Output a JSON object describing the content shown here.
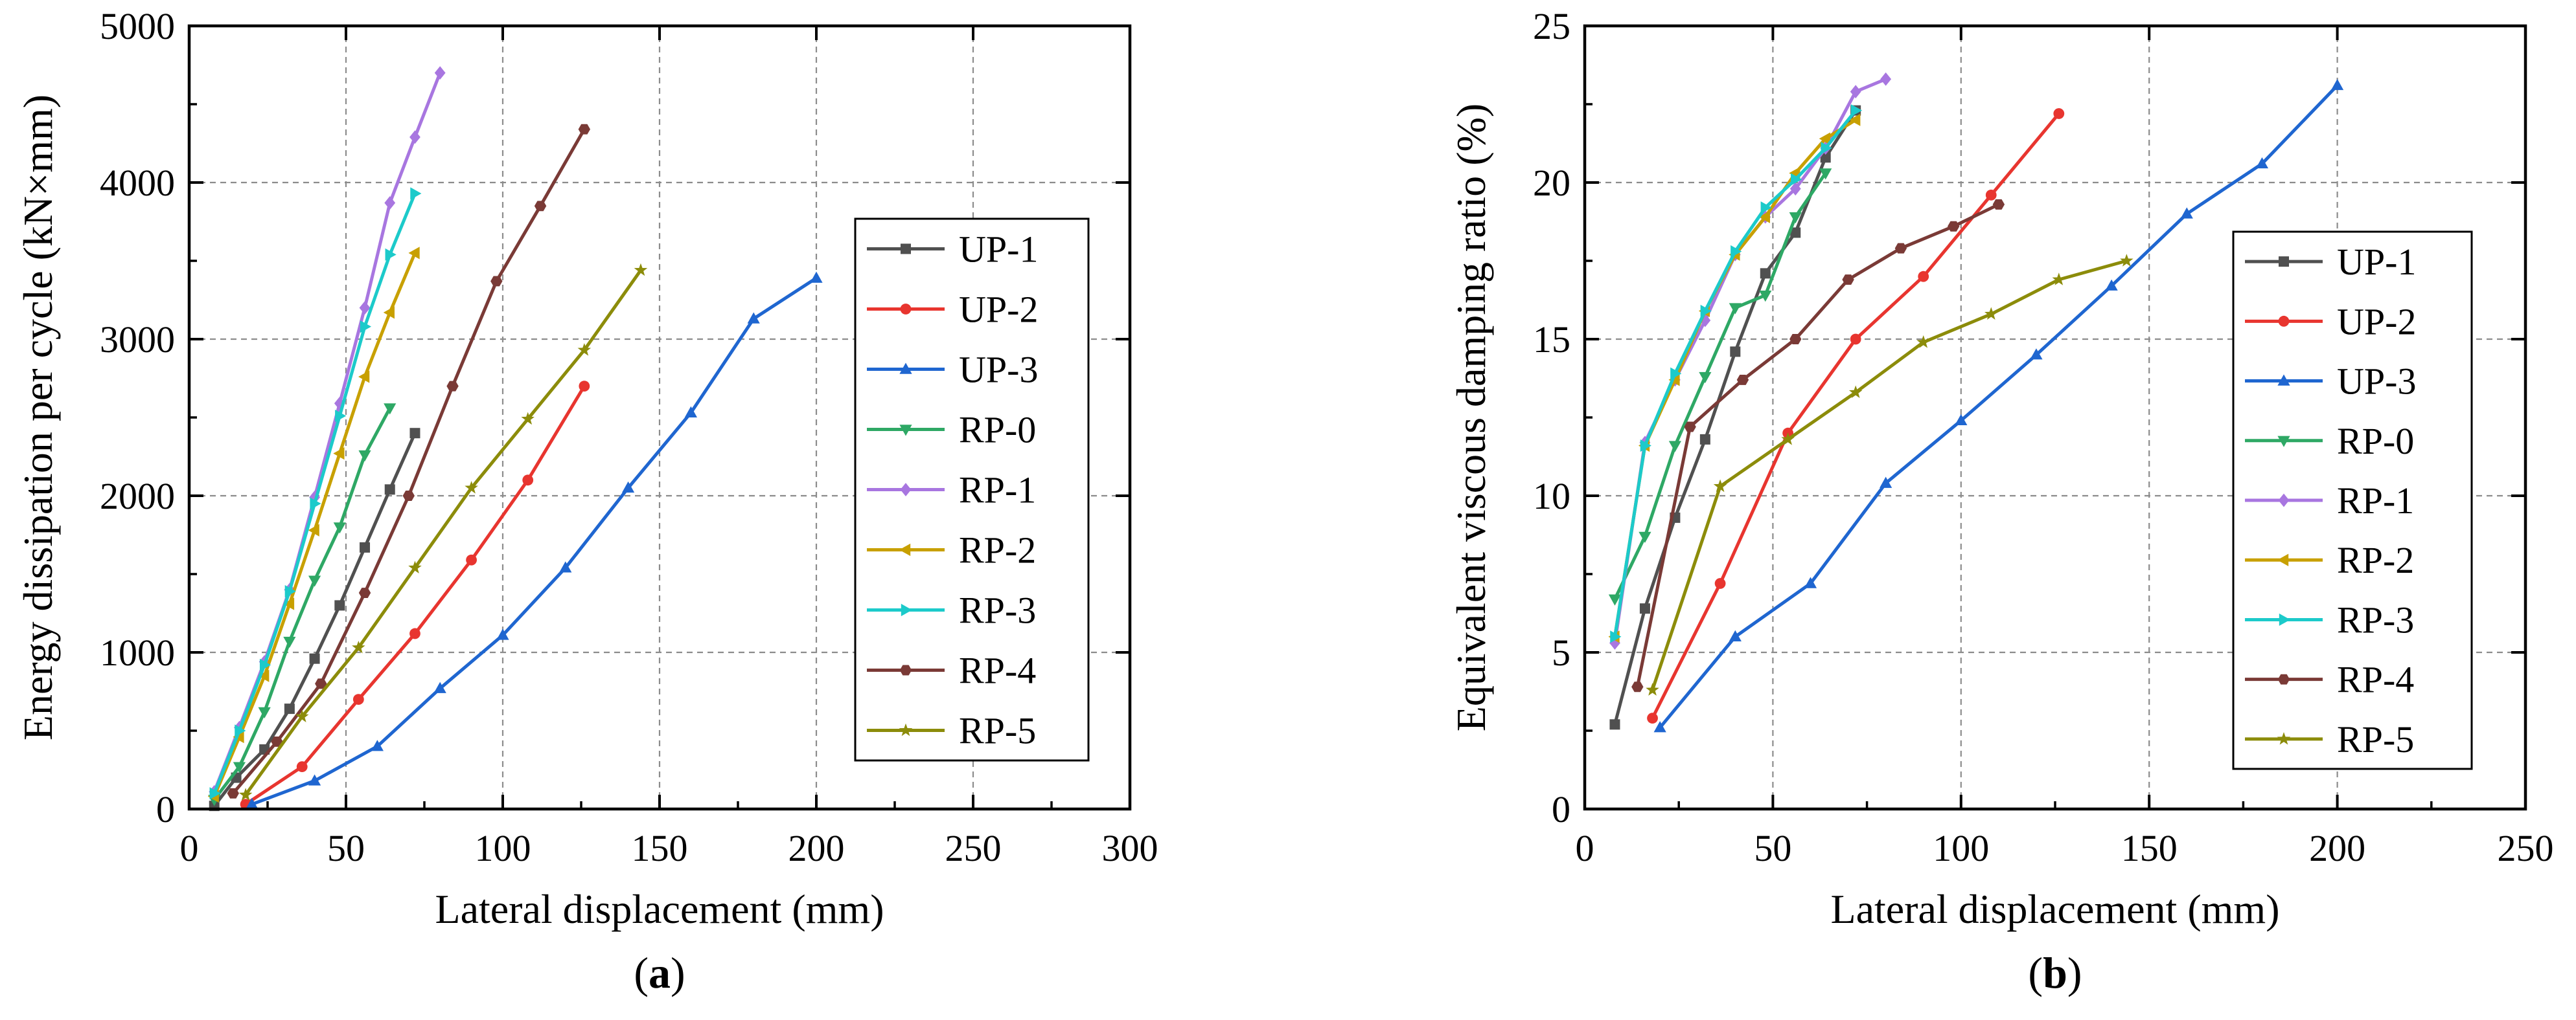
{
  "chart_data": [
    {
      "type": "line",
      "panel_label": "a",
      "xlabel": "Lateral displacement (mm)",
      "ylabel": "Energy dissipation per cycle (kN×mm)",
      "xlim": [
        0,
        300
      ],
      "ylim": [
        0,
        5000
      ],
      "xticks": [
        0,
        50,
        100,
        150,
        200,
        250,
        300
      ],
      "yticks": [
        0,
        1000,
        2000,
        3000,
        4000,
        5000
      ],
      "grid": true,
      "legend": "right",
      "series": [
        {
          "name": "UP-1",
          "color": "#505050",
          "marker": "square",
          "points": [
            [
              8,
              20
            ],
            [
              15,
              200
            ],
            [
              24,
              380
            ],
            [
              32,
              640
            ],
            [
              40,
              960
            ],
            [
              48,
              1300
            ],
            [
              56,
              1670
            ],
            [
              64,
              2040
            ],
            [
              72,
              2400
            ]
          ]
        },
        {
          "name": "UP-2",
          "color": "#e8352f",
          "marker": "circle",
          "points": [
            [
              18,
              30
            ],
            [
              36,
              270
            ],
            [
              54,
              700
            ],
            [
              72,
              1120
            ],
            [
              90,
              1590
            ],
            [
              108,
              2100
            ],
            [
              126,
              2700
            ]
          ]
        },
        {
          "name": "UP-3",
          "color": "#1f66d0",
          "marker": "triangle-up",
          "points": [
            [
              20,
              30
            ],
            [
              40,
              180
            ],
            [
              60,
              400
            ],
            [
              80,
              770
            ],
            [
              100,
              1110
            ],
            [
              120,
              1540
            ],
            [
              140,
              2050
            ],
            [
              160,
              2530
            ],
            [
              180,
              3130
            ],
            [
              200,
              3390
            ]
          ]
        },
        {
          "name": "RP-0",
          "color": "#2ea865",
          "marker": "triangle-down",
          "points": [
            [
              8,
              60
            ],
            [
              16,
              270
            ],
            [
              24,
              620
            ],
            [
              32,
              1070
            ],
            [
              40,
              1460
            ],
            [
              48,
              1800
            ],
            [
              56,
              2260
            ],
            [
              64,
              2560
            ]
          ]
        },
        {
          "name": "RP-1",
          "color": "#a876e0",
          "marker": "diamond",
          "points": [
            [
              8,
              110
            ],
            [
              16,
              520
            ],
            [
              24,
              940
            ],
            [
              32,
              1400
            ],
            [
              40,
              1990
            ],
            [
              48,
              2590
            ],
            [
              56,
              3200
            ],
            [
              64,
              3870
            ],
            [
              72,
              4290
            ],
            [
              80,
              4700
            ]
          ]
        },
        {
          "name": "RP-2",
          "color": "#c8a000",
          "marker": "triangle-left",
          "points": [
            [
              8,
              80
            ],
            [
              16,
              460
            ],
            [
              24,
              850
            ],
            [
              32,
              1310
            ],
            [
              40,
              1780
            ],
            [
              48,
              2270
            ],
            [
              56,
              2760
            ],
            [
              64,
              3170
            ],
            [
              72,
              3550
            ]
          ]
        },
        {
          "name": "RP-3",
          "color": "#1ccaca",
          "marker": "triangle-right",
          "points": [
            [
              8,
              100
            ],
            [
              16,
              500
            ],
            [
              24,
              920
            ],
            [
              32,
              1390
            ],
            [
              40,
              1950
            ],
            [
              48,
              2510
            ],
            [
              56,
              3080
            ],
            [
              64,
              3540
            ],
            [
              72,
              3930
            ]
          ]
        },
        {
          "name": "RP-4",
          "color": "#7a3a36",
          "marker": "hexagon",
          "points": [
            [
              14,
              100
            ],
            [
              28,
              430
            ],
            [
              42,
              800
            ],
            [
              56,
              1380
            ],
            [
              70,
              2000
            ],
            [
              84,
              2700
            ],
            [
              98,
              3370
            ],
            [
              112,
              3850
            ],
            [
              126,
              4340
            ]
          ]
        },
        {
          "name": "RP-5",
          "color": "#8c8c0a",
          "marker": "star",
          "points": [
            [
              18,
              90
            ],
            [
              36,
              590
            ],
            [
              54,
              1030
            ],
            [
              72,
              1540
            ],
            [
              90,
              2050
            ],
            [
              108,
              2490
            ],
            [
              126,
              2930
            ],
            [
              144,
              3440
            ]
          ]
        }
      ]
    },
    {
      "type": "line",
      "panel_label": "b",
      "xlabel": "Lateral displacement (mm)",
      "ylabel": "Equivalent viscous damping ratio (%)",
      "xlim": [
        0,
        250
      ],
      "ylim": [
        0,
        25
      ],
      "xticks": [
        0,
        50,
        100,
        150,
        200,
        250
      ],
      "yticks": [
        0,
        5,
        10,
        15,
        20,
        25
      ],
      "grid": true,
      "legend": "right",
      "series": [
        {
          "name": "UP-1",
          "color": "#505050",
          "marker": "square",
          "points": [
            [
              8,
              2.7
            ],
            [
              16,
              6.4
            ],
            [
              24,
              9.3
            ],
            [
              32,
              11.8
            ],
            [
              40,
              14.6
            ],
            [
              48,
              17.1
            ],
            [
              56,
              18.4
            ],
            [
              64,
              20.8
            ],
            [
              72,
              22.3
            ]
          ]
        },
        {
          "name": "UP-2",
          "color": "#e8352f",
          "marker": "circle",
          "points": [
            [
              18,
              2.9
            ],
            [
              36,
              7.2
            ],
            [
              54,
              12.0
            ],
            [
              72,
              15.0
            ],
            [
              90,
              17.0
            ],
            [
              108,
              19.6
            ],
            [
              126,
              22.2
            ]
          ]
        },
        {
          "name": "UP-3",
          "color": "#1f66d0",
          "marker": "triangle-up",
          "points": [
            [
              20,
              2.6
            ],
            [
              40,
              5.5
            ],
            [
              60,
              7.2
            ],
            [
              80,
              10.4
            ],
            [
              100,
              12.4
            ],
            [
              120,
              14.5
            ],
            [
              140,
              16.7
            ],
            [
              160,
              19.0
            ],
            [
              180,
              20.6
            ],
            [
              200,
              23.1
            ]
          ]
        },
        {
          "name": "RP-0",
          "color": "#2ea865",
          "marker": "triangle-down",
          "points": [
            [
              8,
              6.7
            ],
            [
              16,
              8.7
            ],
            [
              24,
              11.6
            ],
            [
              32,
              13.8
            ],
            [
              40,
              16.0
            ],
            [
              48,
              16.4
            ],
            [
              56,
              18.9
            ],
            [
              64,
              20.3
            ]
          ]
        },
        {
          "name": "RP-1",
          "color": "#a876e0",
          "marker": "diamond",
          "points": [
            [
              8,
              5.3
            ],
            [
              16,
              11.7
            ],
            [
              24,
              13.7
            ],
            [
              32,
              15.6
            ],
            [
              40,
              17.7
            ],
            [
              48,
              18.9
            ],
            [
              56,
              19.8
            ],
            [
              64,
              21.1
            ],
            [
              72,
              22.9
            ],
            [
              80,
              23.3
            ]
          ]
        },
        {
          "name": "RP-2",
          "color": "#c8a000",
          "marker": "triangle-left",
          "points": [
            [
              8,
              5.5
            ],
            [
              16,
              11.6
            ],
            [
              24,
              13.7
            ],
            [
              32,
              15.9
            ],
            [
              40,
              17.7
            ],
            [
              48,
              18.9
            ],
            [
              56,
              20.3
            ],
            [
              64,
              21.4
            ],
            [
              72,
              22.0
            ]
          ]
        },
        {
          "name": "RP-3",
          "color": "#1ccaca",
          "marker": "triangle-right",
          "points": [
            [
              8,
              5.5
            ],
            [
              16,
              11.6
            ],
            [
              24,
              13.9
            ],
            [
              32,
              15.9
            ],
            [
              40,
              17.8
            ],
            [
              48,
              19.2
            ],
            [
              56,
              20.1
            ],
            [
              64,
              21.1
            ],
            [
              72,
              22.3
            ]
          ]
        },
        {
          "name": "RP-4",
          "color": "#7a3a36",
          "marker": "hexagon",
          "points": [
            [
              14,
              3.9
            ],
            [
              28,
              12.2
            ],
            [
              42,
              13.7
            ],
            [
              56,
              15.0
            ],
            [
              70,
              16.9
            ],
            [
              84,
              17.9
            ],
            [
              98,
              18.6
            ],
            [
              110,
              19.3
            ]
          ]
        },
        {
          "name": "RP-5",
          "color": "#8c8c0a",
          "marker": "star",
          "points": [
            [
              18,
              3.8
            ],
            [
              36,
              10.3
            ],
            [
              54,
              11.8
            ],
            [
              72,
              13.3
            ],
            [
              90,
              14.9
            ],
            [
              108,
              15.8
            ],
            [
              126,
              16.9
            ],
            [
              144,
              17.5
            ]
          ]
        }
      ]
    }
  ]
}
